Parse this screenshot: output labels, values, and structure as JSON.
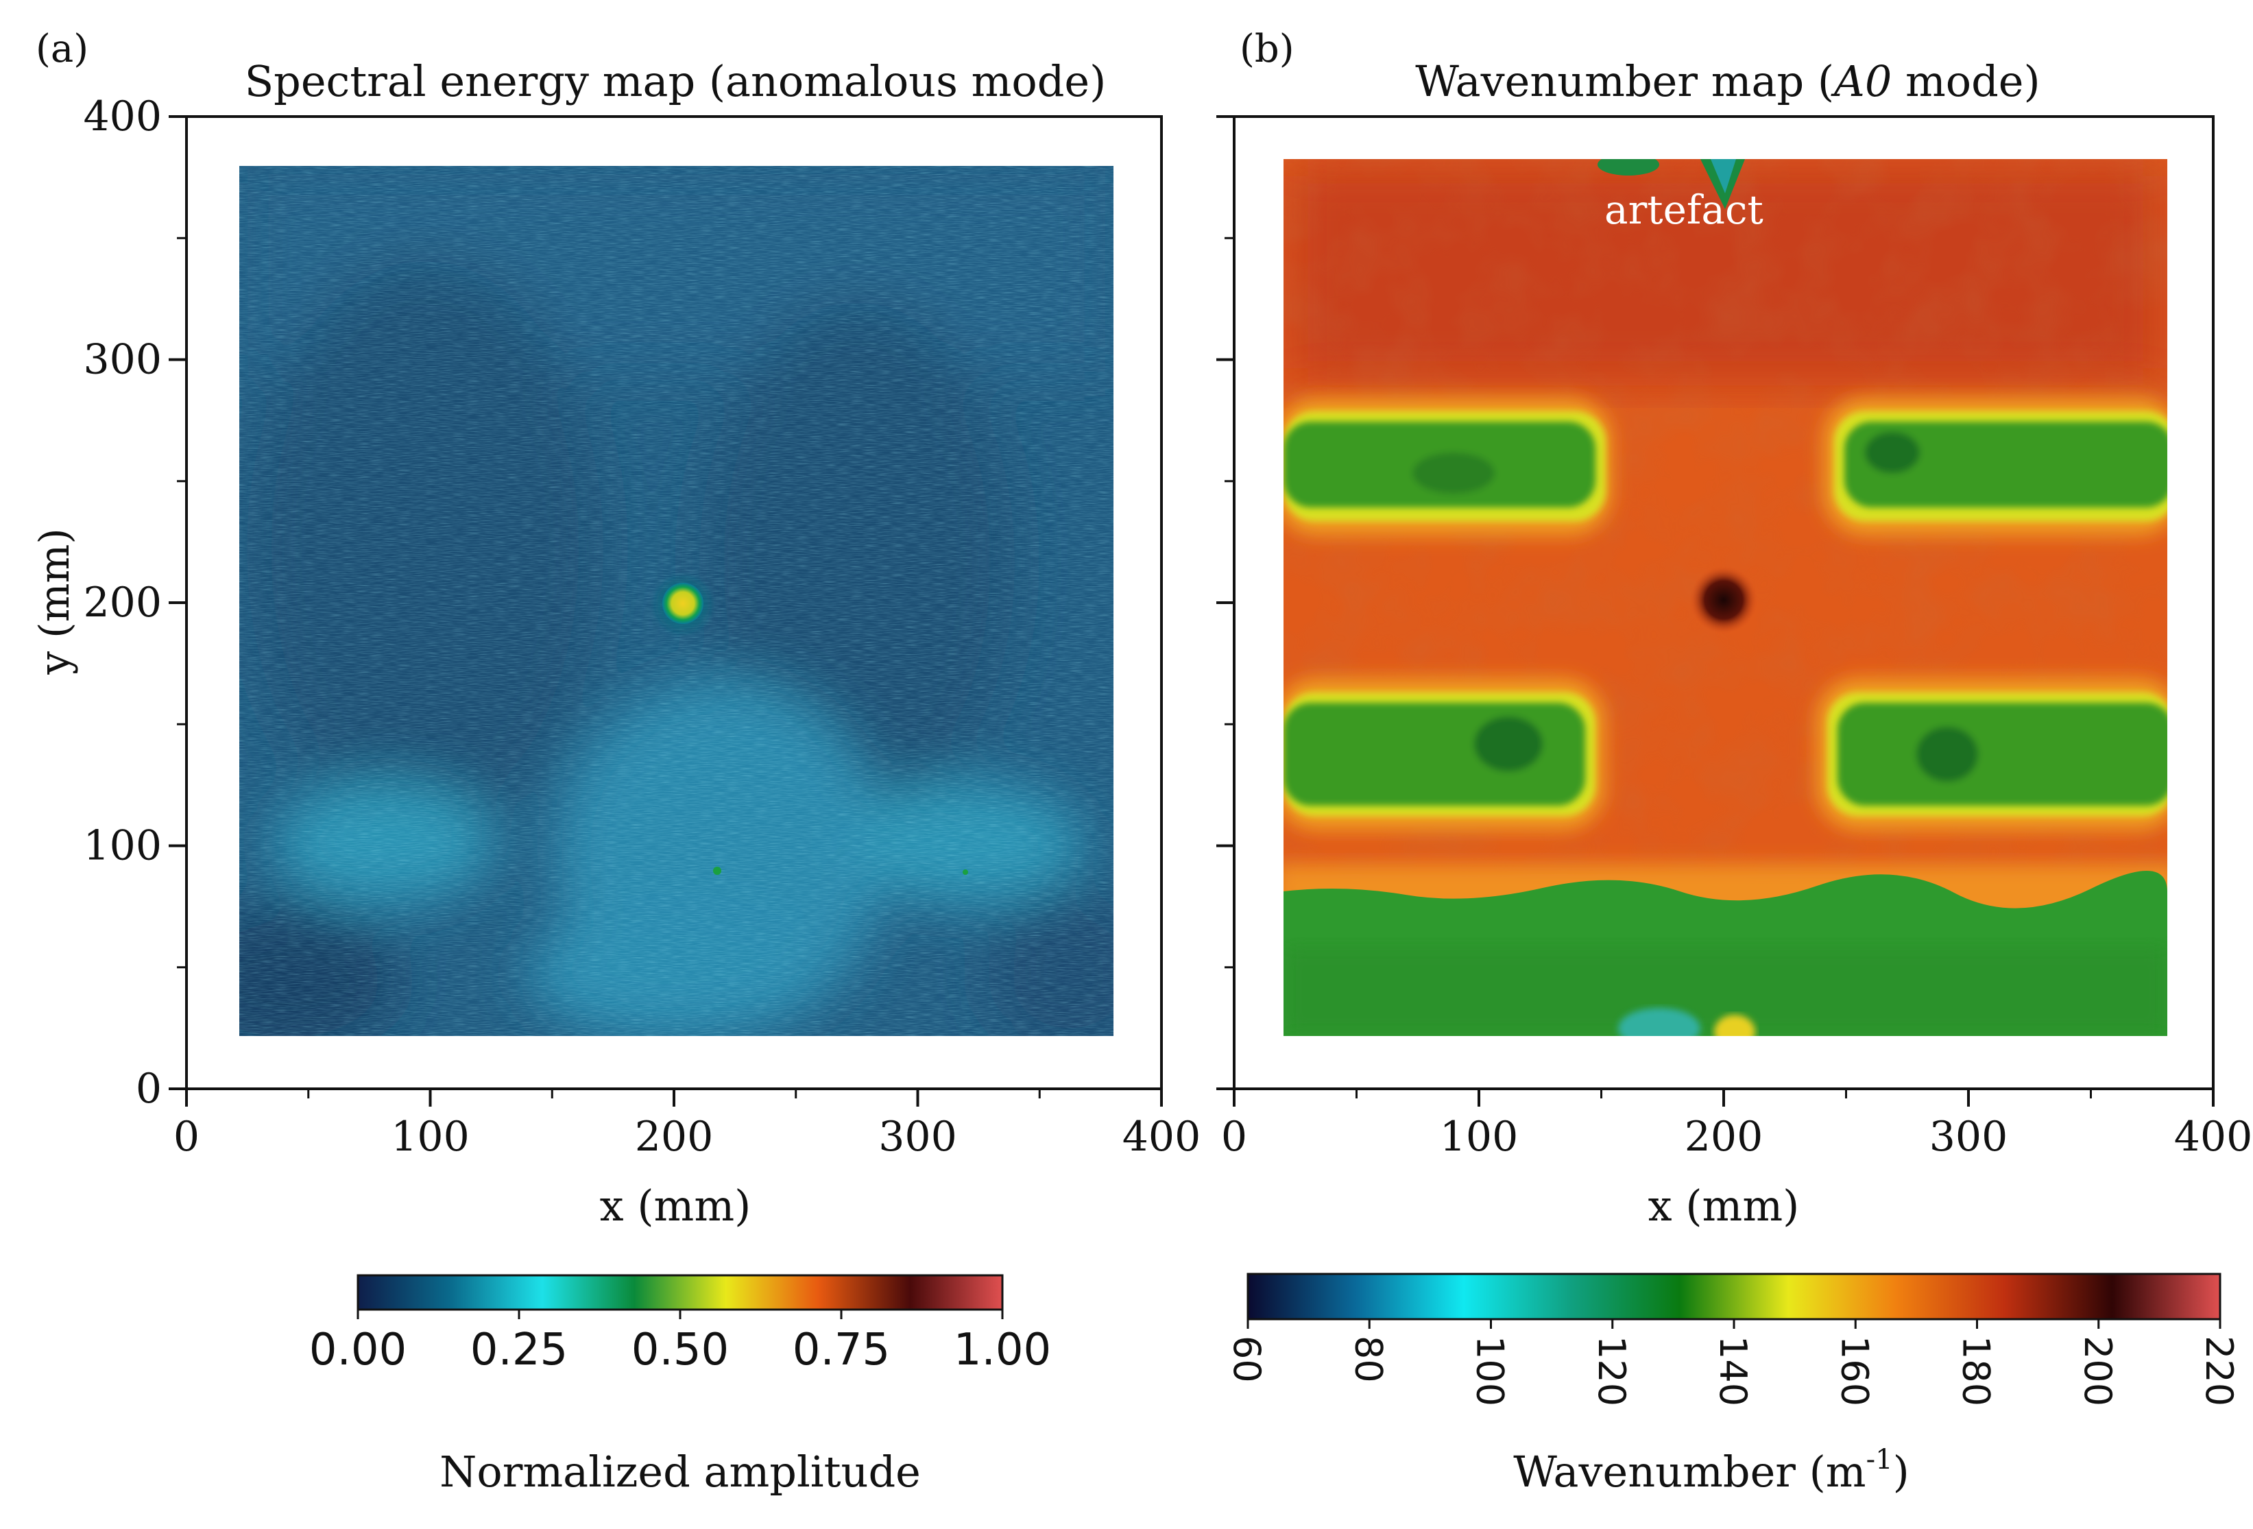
{
  "chart_data": [
    {
      "panel_label": "(a)",
      "type": "heatmap",
      "title": "Spectral energy map (anomalous mode)",
      "xlabel": "x (mm)",
      "ylabel": "y (mm)",
      "xlim": [
        0,
        400
      ],
      "ylim": [
        0,
        400
      ],
      "x_ticks": [
        "0",
        "100",
        "200",
        "300",
        "400"
      ],
      "y_ticks": [
        "0",
        "100",
        "200",
        "300",
        "400"
      ],
      "data_extent": {
        "x": [
          20,
          380
        ],
        "y": [
          20,
          380
        ]
      },
      "features": [
        {
          "name": "hotspot",
          "x": 202,
          "y": 198,
          "value": 0.62
        }
      ],
      "colorbar": {
        "label": "Normalized amplitude",
        "range": [
          0,
          1
        ],
        "ticks": [
          "0.00",
          "0.25",
          "0.50",
          "0.75",
          "1.00"
        ],
        "colors": [
          "#0e1e4a",
          "#0a6a8c",
          "#1de0e8",
          "#0a8a3a",
          "#e8e81a",
          "#e85a10",
          "#4a0a0a",
          "#e05050"
        ]
      }
    },
    {
      "panel_label": "(b)",
      "type": "heatmap",
      "title_prefix": "Wavenumber map (",
      "title_italic": "A0",
      "title_suffix": " mode)",
      "xlabel": "x (mm)",
      "xlim": [
        0,
        400
      ],
      "ylim": [
        0,
        400
      ],
      "x_ticks": [
        "0",
        "100",
        "200",
        "300",
        "400"
      ],
      "data_extent": {
        "x": [
          20,
          380
        ],
        "y": [
          20,
          383
        ]
      },
      "annotation": "artefact",
      "regions": [
        {
          "name": "upper-left-band",
          "x": [
            20,
            150
          ],
          "y": [
            240,
            280
          ],
          "value": 135
        },
        {
          "name": "upper-right-band",
          "x": [
            245,
            380
          ],
          "y": [
            240,
            280
          ],
          "value": 135
        },
        {
          "name": "lower-left-band",
          "x": [
            20,
            145
          ],
          "y": [
            120,
            165
          ],
          "value": 135
        },
        {
          "name": "lower-right-band",
          "x": [
            245,
            380
          ],
          "y": [
            120,
            165
          ],
          "value": 135
        },
        {
          "name": "bottom-band",
          "x": [
            20,
            380
          ],
          "y": [
            20,
            80
          ],
          "value": 130
        },
        {
          "name": "dark-spot",
          "x": [
            195,
            205
          ],
          "y": [
            195,
            205
          ],
          "value": 200
        }
      ],
      "colorbar": {
        "label": "Wavenumber (m",
        "label_sup": "-1",
        "label_end": ")",
        "range": [
          60,
          220
        ],
        "ticks": [
          "60",
          "80",
          "100",
          "120",
          "140",
          "160",
          "180",
          "200",
          "220"
        ],
        "colors": [
          "#0a0a30",
          "#0a6a9a",
          "#10e8f0",
          "#10a080",
          "#0a7a10",
          "#e8e81a",
          "#f08010",
          "#c03010",
          "#300505",
          "#e05050"
        ]
      }
    }
  ]
}
